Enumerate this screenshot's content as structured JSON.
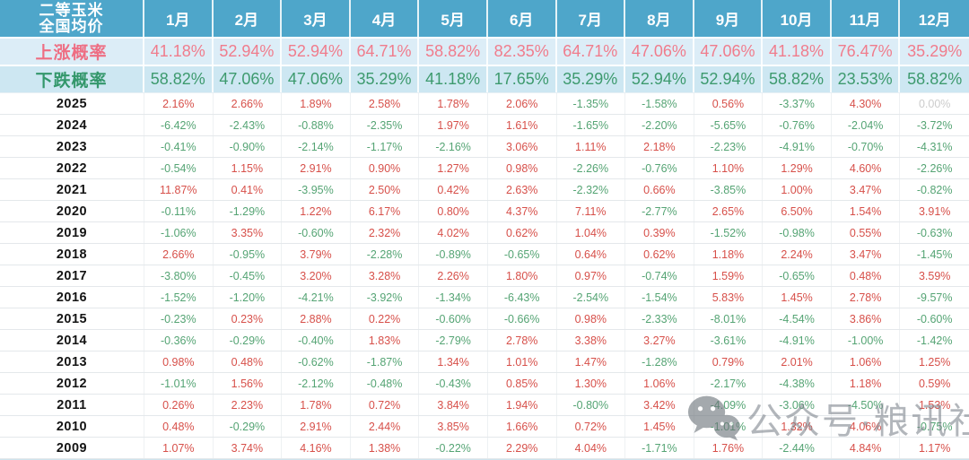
{
  "header": {
    "corner_line1": "二等玉米",
    "corner_line2": "全国均价"
  },
  "chart_data": {
    "type": "table",
    "columns": [
      "1月",
      "2月",
      "3月",
      "4月",
      "5月",
      "6月",
      "7月",
      "8月",
      "9月",
      "10月",
      "11月",
      "12月"
    ],
    "rise_row": {
      "label": "上涨概率",
      "values": [
        "41.18%",
        "52.94%",
        "52.94%",
        "64.71%",
        "58.82%",
        "82.35%",
        "64.71%",
        "47.06%",
        "47.06%",
        "41.18%",
        "76.47%",
        "35.29%"
      ]
    },
    "fall_row": {
      "label": "下跌概率",
      "values": [
        "58.82%",
        "47.06%",
        "47.06%",
        "35.29%",
        "41.18%",
        "17.65%",
        "35.29%",
        "52.94%",
        "52.94%",
        "58.82%",
        "23.53%",
        "58.82%"
      ]
    },
    "year_rows": [
      {
        "year": "2025",
        "values": [
          "2.16%",
          "2.66%",
          "1.89%",
          "2.58%",
          "1.78%",
          "2.06%",
          "-1.35%",
          "-1.58%",
          "0.56%",
          "-3.37%",
          "4.30%",
          "0.00%"
        ]
      },
      {
        "year": "2024",
        "values": [
          "-6.42%",
          "-2.43%",
          "-0.88%",
          "-2.35%",
          "1.97%",
          "1.61%",
          "-1.65%",
          "-2.20%",
          "-5.65%",
          "-0.76%",
          "-2.04%",
          "-3.72%"
        ]
      },
      {
        "year": "2023",
        "values": [
          "-0.41%",
          "-0.90%",
          "-2.14%",
          "-1.17%",
          "-2.16%",
          "3.06%",
          "1.11%",
          "2.18%",
          "-2.23%",
          "-4.91%",
          "-0.70%",
          "-4.31%"
        ]
      },
      {
        "year": "2022",
        "values": [
          "-0.54%",
          "1.15%",
          "2.91%",
          "0.90%",
          "1.27%",
          "0.98%",
          "-2.26%",
          "-0.76%",
          "1.10%",
          "1.29%",
          "4.60%",
          "-2.26%"
        ]
      },
      {
        "year": "2021",
        "values": [
          "11.87%",
          "0.41%",
          "-3.95%",
          "2.50%",
          "0.42%",
          "2.63%",
          "-2.32%",
          "0.66%",
          "-3.85%",
          "1.00%",
          "3.47%",
          "-0.82%"
        ]
      },
      {
        "year": "2020",
        "values": [
          "-0.11%",
          "-1.29%",
          "1.22%",
          "6.17%",
          "0.80%",
          "4.37%",
          "7.11%",
          "-2.77%",
          "2.65%",
          "6.50%",
          "1.54%",
          "3.91%"
        ]
      },
      {
        "year": "2019",
        "values": [
          "-1.06%",
          "3.35%",
          "-0.60%",
          "2.32%",
          "4.02%",
          "0.62%",
          "1.04%",
          "0.39%",
          "-1.52%",
          "-0.98%",
          "0.55%",
          "-0.63%"
        ]
      },
      {
        "year": "2018",
        "values": [
          "2.66%",
          "-0.95%",
          "3.79%",
          "-2.28%",
          "-0.89%",
          "-0.65%",
          "0.64%",
          "0.62%",
          "1.18%",
          "2.24%",
          "3.47%",
          "-1.45%"
        ]
      },
      {
        "year": "2017",
        "values": [
          "-3.80%",
          "-0.45%",
          "3.20%",
          "3.28%",
          "2.26%",
          "1.80%",
          "0.97%",
          "-0.74%",
          "1.59%",
          "-0.65%",
          "0.48%",
          "3.59%"
        ]
      },
      {
        "year": "2016",
        "values": [
          "-1.52%",
          "-1.20%",
          "-4.21%",
          "-3.92%",
          "-1.34%",
          "-6.43%",
          "-2.54%",
          "-1.54%",
          "5.83%",
          "1.45%",
          "2.78%",
          "-9.57%"
        ]
      },
      {
        "year": "2015",
        "values": [
          "-0.23%",
          "0.23%",
          "2.88%",
          "0.22%",
          "-0.60%",
          "-0.66%",
          "0.98%",
          "-2.33%",
          "-8.01%",
          "-4.54%",
          "3.86%",
          "-0.60%"
        ]
      },
      {
        "year": "2014",
        "values": [
          "-0.36%",
          "-0.29%",
          "-0.40%",
          "1.83%",
          "-2.79%",
          "2.78%",
          "3.38%",
          "3.27%",
          "-3.61%",
          "-4.91%",
          "-1.00%",
          "-1.42%"
        ]
      },
      {
        "year": "2013",
        "values": [
          "0.98%",
          "0.48%",
          "-0.62%",
          "-1.87%",
          "1.34%",
          "1.01%",
          "1.47%",
          "-1.28%",
          "0.79%",
          "2.01%",
          "1.06%",
          "1.25%"
        ]
      },
      {
        "year": "2012",
        "values": [
          "-1.01%",
          "1.56%",
          "-2.12%",
          "-0.48%",
          "-0.43%",
          "0.85%",
          "1.30%",
          "1.06%",
          "-2.17%",
          "-4.38%",
          "1.18%",
          "0.59%"
        ]
      },
      {
        "year": "2011",
        "values": [
          "0.26%",
          "2.23%",
          "1.78%",
          "0.72%",
          "3.84%",
          "1.94%",
          "-0.80%",
          "3.42%",
          "-4.09%",
          "-3.06%",
          "-4.50%",
          "1.53%"
        ]
      },
      {
        "year": "2010",
        "values": [
          "0.48%",
          "-0.29%",
          "2.91%",
          "2.44%",
          "3.85%",
          "1.66%",
          "0.72%",
          "1.45%",
          "-1.01%",
          "1.32%",
          "4.06%",
          "-0.75%"
        ]
      },
      {
        "year": "2009",
        "values": [
          "1.07%",
          "3.74%",
          "4.16%",
          "1.38%",
          "-0.22%",
          "2.29%",
          "4.04%",
          "-1.71%",
          "1.76%",
          "-2.44%",
          "4.84%",
          "1.17%"
        ]
      }
    ]
  },
  "watermark": {
    "text": "公众号·粮讯社",
    "icon": "wechat-icon"
  },
  "colors": {
    "header_bg": "#4ea6ca",
    "rise_bg": "#dcedf7",
    "fall_bg": "#cde7f2",
    "rise_text": "#f07c8c",
    "fall_text": "#3d9a6e",
    "positive_text": "#d7504a",
    "negative_text": "#55a474",
    "zero_text": "#cccccc",
    "bottom_strip": "#cfe3ed"
  }
}
